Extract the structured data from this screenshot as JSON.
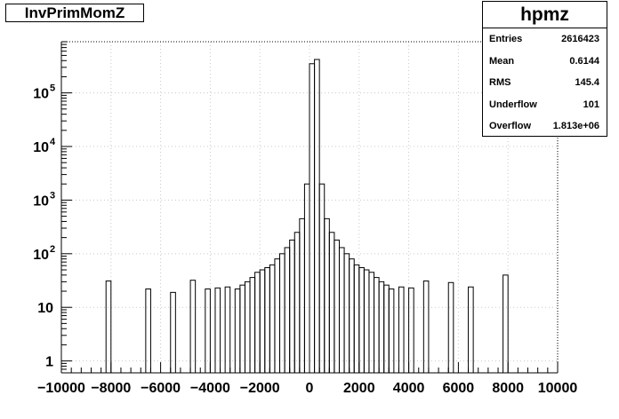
{
  "chart_data": {
    "type": "bar",
    "title": "InvPrimMomZ",
    "stats": {
      "name": "hpmz",
      "rows": [
        {
          "key": "Entries",
          "value": "2616423"
        },
        {
          "key": "Mean",
          "value": "0.6144"
        },
        {
          "key": "RMS",
          "value": "145.4"
        },
        {
          "key": "Underflow",
          "value": "101"
        },
        {
          "key": "Overflow",
          "value": "1.813e+06"
        }
      ]
    },
    "xlim": [
      -10000,
      10000
    ],
    "ylim": [
      0.6,
      900000
    ],
    "log_y": true,
    "grid": true,
    "bin_width": 200,
    "x_ticks": [
      "−10000",
      "−8000",
      "−6000",
      "−4000",
      "−2000",
      "0",
      "2000",
      "4000",
      "6000",
      "8000",
      "10000"
    ],
    "y_ticks": [
      {
        "value": 1,
        "base": "1",
        "exp": ""
      },
      {
        "value": 10,
        "base": "10",
        "exp": ""
      },
      {
        "value": 100,
        "base": "10",
        "exp": "2"
      },
      {
        "value": 1000,
        "base": "10",
        "exp": "3"
      },
      {
        "value": 10000,
        "base": "10",
        "exp": "4"
      },
      {
        "value": 100000,
        "base": "10",
        "exp": "5"
      }
    ],
    "bins": [
      [
        -8200,
        31
      ],
      [
        -6600,
        22
      ],
      [
        -5600,
        19
      ],
      [
        -4800,
        32
      ],
      [
        -4200,
        22
      ],
      [
        -3800,
        23
      ],
      [
        -3400,
        24
      ],
      [
        -3000,
        22
      ],
      [
        -2800,
        26
      ],
      [
        -2600,
        30
      ],
      [
        -2400,
        36
      ],
      [
        -2200,
        45
      ],
      [
        -2000,
        50
      ],
      [
        -1800,
        55
      ],
      [
        -1600,
        62
      ],
      [
        -1400,
        80
      ],
      [
        -1200,
        100
      ],
      [
        -1000,
        130
      ],
      [
        -800,
        180
      ],
      [
        -600,
        250
      ],
      [
        -400,
        450
      ],
      [
        -200,
        2000
      ],
      [
        0,
        350000
      ],
      [
        200,
        420000
      ],
      [
        400,
        2000
      ],
      [
        600,
        450
      ],
      [
        800,
        250
      ],
      [
        1000,
        180
      ],
      [
        1200,
        130
      ],
      [
        1400,
        100
      ],
      [
        1600,
        80
      ],
      [
        1800,
        62
      ],
      [
        2000,
        55
      ],
      [
        2200,
        50
      ],
      [
        2400,
        45
      ],
      [
        2600,
        36
      ],
      [
        2800,
        30
      ],
      [
        3000,
        26
      ],
      [
        3200,
        22
      ],
      [
        3600,
        24
      ],
      [
        4000,
        23
      ],
      [
        4600,
        31
      ],
      [
        5600,
        29
      ],
      [
        6400,
        24
      ],
      [
        7800,
        40
      ]
    ]
  }
}
